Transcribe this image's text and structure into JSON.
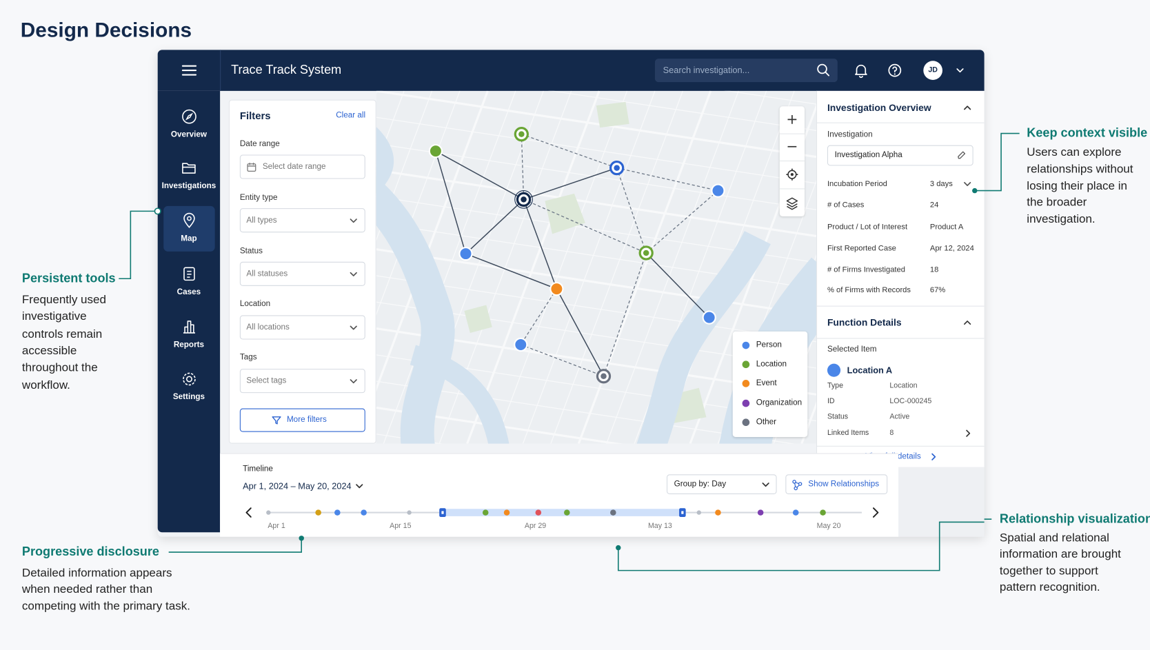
{
  "page_title": "Design Decisions",
  "app": {
    "title": "Trace Track System",
    "search_placeholder": "Search investigation...",
    "avatar": "JD"
  },
  "nav": [
    "Overview",
    "Investigations",
    "Map",
    "Cases",
    "Reports",
    "Settings"
  ],
  "filters": {
    "title": "Filters",
    "clear": "Clear all",
    "fields": [
      {
        "label": "Date range",
        "placeholder": "Select date range"
      },
      {
        "label": "Entity type",
        "placeholder": "All types"
      },
      {
        "label": "Status",
        "placeholder": "All statuses"
      },
      {
        "label": "Location",
        "placeholder": "All locations"
      },
      {
        "label": "Tags",
        "placeholder": "Select tags"
      }
    ],
    "more": "More filters"
  },
  "legend": [
    "Person",
    "Location",
    "Event",
    "Organization",
    "Other"
  ],
  "overview": {
    "title": "Investigation Overview",
    "investigation_label": "Investigation",
    "investigation_value": "Investigation Alpha",
    "rows": [
      [
        "Incubation Period",
        "3 days"
      ],
      [
        "# of Cases",
        "24"
      ],
      [
        "Product / Lot of Interest",
        "Product A"
      ],
      [
        "First Reported Case",
        "Apr 12, 2024"
      ],
      [
        "# of Firms Investigated",
        "18"
      ],
      [
        "% of Firms with Records",
        "67%"
      ]
    ]
  },
  "details": {
    "title": "Function Details",
    "selected_label": "Selected Item",
    "selected_name": "Location A",
    "rows": [
      [
        "Type",
        "Location"
      ],
      [
        "ID",
        "LOC-000245"
      ],
      [
        "Status",
        "Active"
      ],
      [
        "Linked Items",
        "8"
      ]
    ],
    "view_full": "View full details"
  },
  "timeline": {
    "title": "Timeline",
    "range": "Apr 1, 2024 – May 20, 2024",
    "group_by": "Group by: Day",
    "show_relationships": "Show Relationships",
    "labels": [
      "Apr 1",
      "Apr 15",
      "Apr 29",
      "May 13",
      "May 20"
    ]
  },
  "annotations": [
    {
      "title": "Persistent tools",
      "lines": [
        "Frequently used",
        "investigative",
        "controls remain",
        "accessible",
        "throughout the",
        "workflow."
      ]
    },
    {
      "title": "Keep context visible",
      "lines": [
        "Users can explore",
        "relationships without",
        "losing their place in",
        "the broader",
        "investigation."
      ]
    },
    {
      "title": "Relationship visualization",
      "lines": [
        "Spatial and relational",
        "information are brought",
        "together to support",
        "pattern recognition."
      ]
    },
    {
      "title": "Progressive disclosure",
      "lines": [
        "Detailed information appears",
        "when needed rather than",
        "competing with the primary task."
      ]
    }
  ]
}
